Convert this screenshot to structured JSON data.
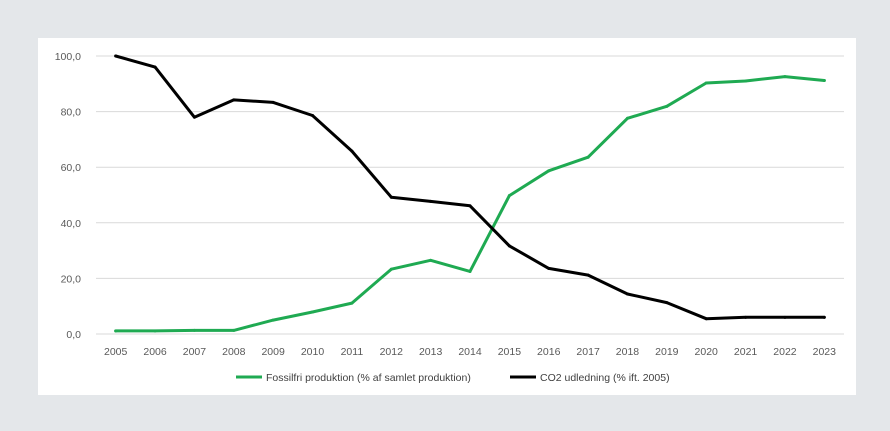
{
  "chart_data": {
    "type": "line",
    "title": "",
    "xlabel": "",
    "ylabel": "",
    "ylim": [
      0,
      100
    ],
    "yticks": [
      0,
      20,
      40,
      60,
      80,
      100
    ],
    "ytick_labels": [
      "0,0",
      "20,0",
      "40,0",
      "60,0",
      "80,0",
      "100,0"
    ],
    "grid": "horizontal",
    "legend_position": "bottom",
    "x": [
      2005,
      2006,
      2007,
      2008,
      2009,
      2010,
      2011,
      2012,
      2013,
      2014,
      2015,
      2016,
      2017,
      2018,
      2019,
      2020,
      2021,
      2022,
      2023
    ],
    "xtick_labels": [
      "2005",
      "2006",
      "2007",
      "2008",
      "2009",
      "2010",
      "2011",
      "2012",
      "2013",
      "2014",
      "2015",
      "2016",
      "2017",
      "2018",
      "2019",
      "2020",
      "2021",
      "2022",
      "2023"
    ],
    "series": [
      {
        "name": "Fossilfri produktion (% af samlet produktion)",
        "color": "#1faa52",
        "values": [
          1.1,
          1.1,
          1.3,
          1.3,
          5.0,
          7.9,
          11.1,
          23.3,
          26.5,
          22.5,
          49.8,
          58.7,
          63.6,
          77.6,
          81.9,
          90.3,
          91.0,
          92.6,
          91.2
        ]
      },
      {
        "name": "CO2 udledning (% ift. 2005)",
        "color": "#000000",
        "values": [
          100.0,
          96.0,
          78.0,
          84.2,
          83.3,
          78.6,
          65.8,
          49.2,
          47.7,
          46.1,
          31.7,
          23.6,
          21.2,
          14.4,
          11.3,
          5.5,
          6.0,
          6.0,
          6.0
        ]
      }
    ]
  }
}
